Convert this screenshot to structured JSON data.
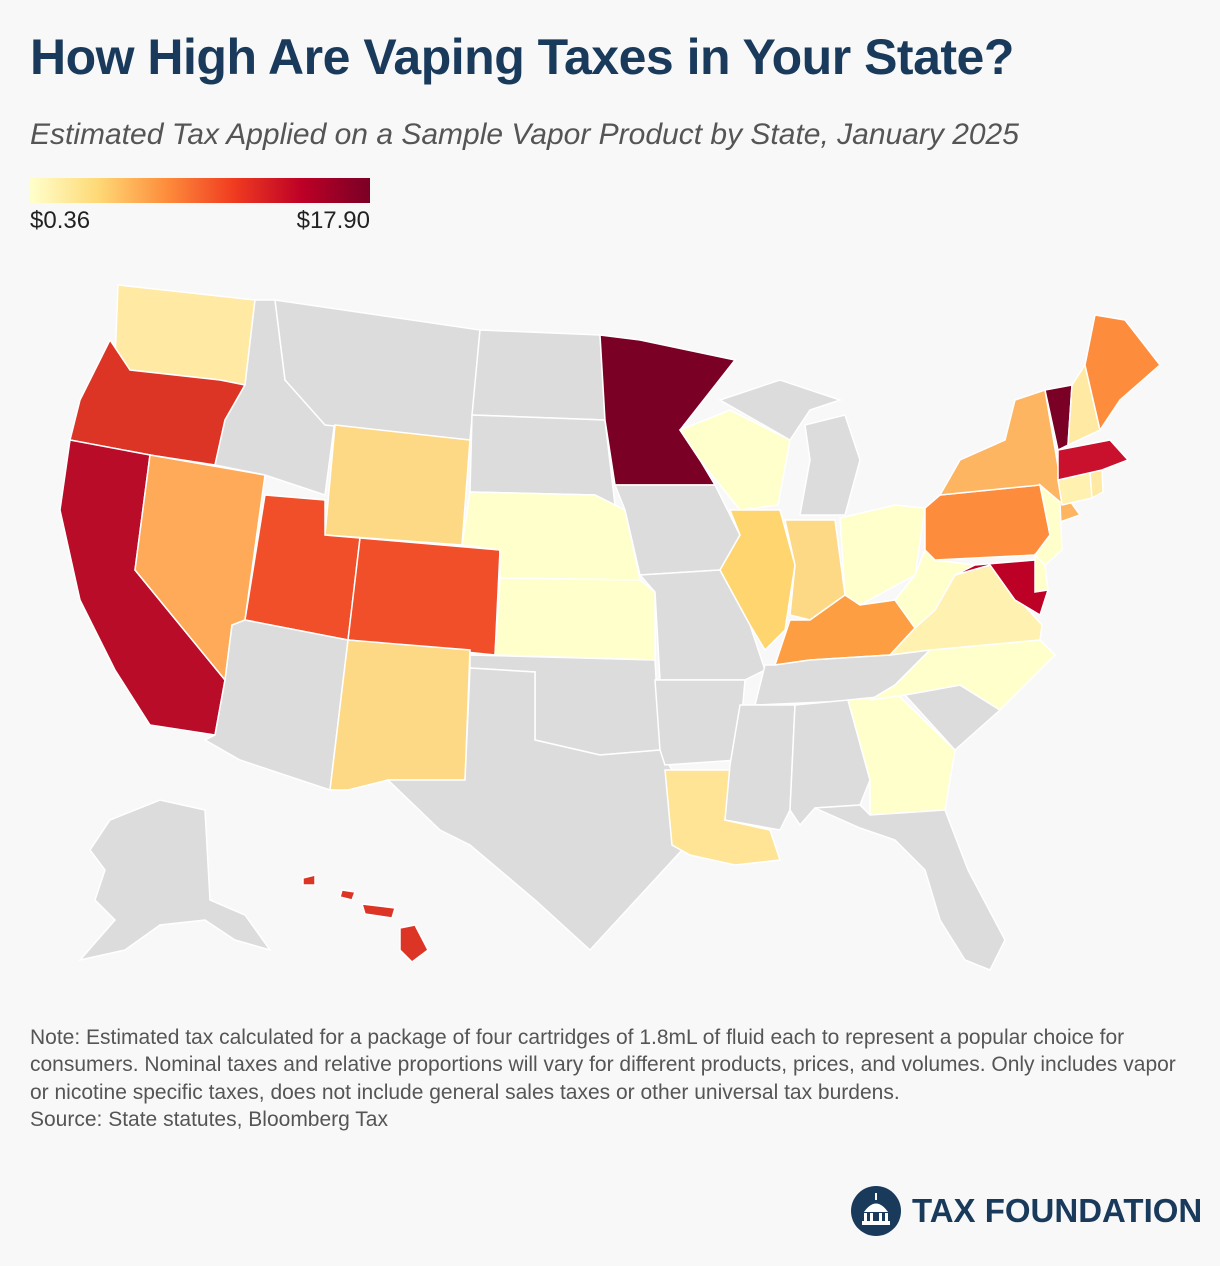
{
  "title": "How High Are Vaping Taxes in Your State?",
  "subtitle": "Estimated Tax Applied on a Sample Vapor Product by State, January 2025",
  "legend": {
    "min_label": "$0.36",
    "max_label": "$17.90",
    "colors": [
      "#ffffcc",
      "#fed976",
      "#fd8d3c",
      "#f03b20",
      "#bd0026",
      "#7a0026"
    ]
  },
  "no_tax_color": "#dcdcdc",
  "note": "Note: Estimated tax calculated for a package of four cartridges of 1.8mL of fluid each to represent a popular choice for consumers. Nominal taxes and relative proportions will vary for different products, prices, and volumes. Only includes vapor or nicotine specific taxes, does not include general sales taxes or other universal tax burdens.",
  "source": "Source: State statutes, Bloomberg Tax",
  "logo_text": "TAX FOUNDATION",
  "states": [
    {
      "code": "WA",
      "color": "#ffe9a3"
    },
    {
      "code": "OR",
      "color": "#dc3526"
    },
    {
      "code": "CA",
      "color": "#b80c28"
    },
    {
      "code": "NV",
      "color": "#feaa58"
    },
    {
      "code": "ID",
      "color": "#dcdcdc"
    },
    {
      "code": "MT",
      "color": "#dcdcdc"
    },
    {
      "code": "WY",
      "color": "#fed985"
    },
    {
      "code": "UT",
      "color": "#f04f2a"
    },
    {
      "code": "CO",
      "color": "#f04f2a"
    },
    {
      "code": "AZ",
      "color": "#dcdcdc"
    },
    {
      "code": "NM",
      "color": "#fed985"
    },
    {
      "code": "ND",
      "color": "#dcdcdc"
    },
    {
      "code": "SD",
      "color": "#dcdcdc"
    },
    {
      "code": "NE",
      "color": "#ffffcc"
    },
    {
      "code": "KS",
      "color": "#ffffcc"
    },
    {
      "code": "OK",
      "color": "#dcdcdc"
    },
    {
      "code": "TX",
      "color": "#dcdcdc"
    },
    {
      "code": "MN",
      "color": "#7a0026"
    },
    {
      "code": "IA",
      "color": "#dcdcdc"
    },
    {
      "code": "MO",
      "color": "#dcdcdc"
    },
    {
      "code": "AR",
      "color": "#dcdcdc"
    },
    {
      "code": "LA",
      "color": "#fee494"
    },
    {
      "code": "WI",
      "color": "#ffffcc"
    },
    {
      "code": "IL",
      "color": "#fed56f"
    },
    {
      "code": "MI",
      "color": "#dcdcdc"
    },
    {
      "code": "IN",
      "color": "#fed985"
    },
    {
      "code": "OH",
      "color": "#ffffcc"
    },
    {
      "code": "KY",
      "color": "#fd9e43"
    },
    {
      "code": "TN",
      "color": "#dcdcdc"
    },
    {
      "code": "MS",
      "color": "#dcdcdc"
    },
    {
      "code": "AL",
      "color": "#dcdcdc"
    },
    {
      "code": "GA",
      "color": "#ffffcc"
    },
    {
      "code": "FL",
      "color": "#dcdcdc"
    },
    {
      "code": "SC",
      "color": "#dcdcdc"
    },
    {
      "code": "NC",
      "color": "#ffffcc"
    },
    {
      "code": "VA",
      "color": "#fff1b0"
    },
    {
      "code": "WV",
      "color": "#ffffcc"
    },
    {
      "code": "PA",
      "color": "#fd8d3c"
    },
    {
      "code": "NY",
      "color": "#feb562"
    },
    {
      "code": "NJ",
      "color": "#ffffcc"
    },
    {
      "code": "DE",
      "color": "#ffffcc"
    },
    {
      "code": "MD",
      "color": "#bd0026"
    },
    {
      "code": "CT",
      "color": "#fff1b0"
    },
    {
      "code": "RI",
      "color": "#ffe9a3"
    },
    {
      "code": "MA",
      "color": "#c9102c"
    },
    {
      "code": "VT",
      "color": "#7a0026"
    },
    {
      "code": "NH",
      "color": "#ffe9a3"
    },
    {
      "code": "ME",
      "color": "#fd8d3c"
    },
    {
      "code": "AK",
      "color": "#dcdcdc"
    },
    {
      "code": "HI",
      "color": "#dc3526"
    }
  ]
}
